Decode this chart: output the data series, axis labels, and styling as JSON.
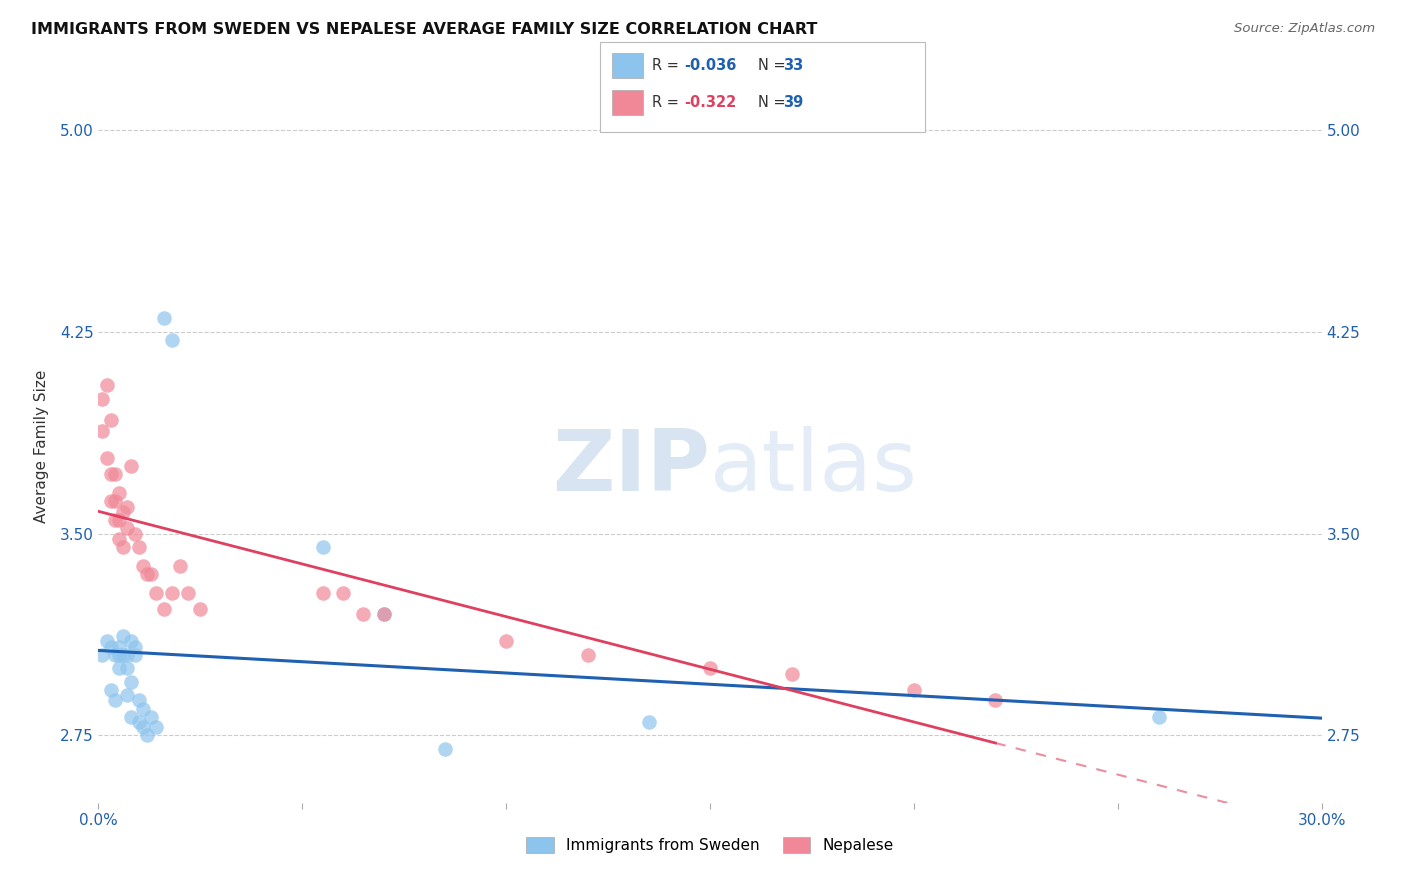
{
  "title": "IMMIGRANTS FROM SWEDEN VS NEPALESE AVERAGE FAMILY SIZE CORRELATION CHART",
  "source": "Source: ZipAtlas.com",
  "ylabel": "Average Family Size",
  "xlim": [
    0.0,
    0.3
  ],
  "ylim": [
    2.5,
    5.15
  ],
  "yticks": [
    2.75,
    3.5,
    4.25,
    5.0
  ],
  "xticks": [
    0.0,
    0.05,
    0.1,
    0.15,
    0.2,
    0.25,
    0.3
  ],
  "background_color": "#ffffff",
  "legend_R1": "-0.036",
  "legend_N1": "33",
  "legend_R2": "-0.322",
  "legend_N2": "39",
  "color_sweden": "#8dc4ed",
  "color_nepal": "#f08898",
  "line_color_sweden": "#2060b0",
  "line_color_nepal": "#e04060",
  "scatter_alpha": 0.7,
  "sweden_x": [
    0.001,
    0.002,
    0.003,
    0.003,
    0.004,
    0.004,
    0.005,
    0.005,
    0.005,
    0.006,
    0.006,
    0.007,
    0.007,
    0.007,
    0.008,
    0.008,
    0.008,
    0.009,
    0.009,
    0.01,
    0.01,
    0.011,
    0.011,
    0.012,
    0.013,
    0.014,
    0.016,
    0.018,
    0.055,
    0.07,
    0.085,
    0.135,
    0.26
  ],
  "sweden_y": [
    3.05,
    3.1,
    3.08,
    2.92,
    3.05,
    2.88,
    3.08,
    3.05,
    3.0,
    3.05,
    3.12,
    3.05,
    3.0,
    2.9,
    3.1,
    2.95,
    2.82,
    3.08,
    3.05,
    2.88,
    2.8,
    2.85,
    2.78,
    2.75,
    2.82,
    2.78,
    4.3,
    4.22,
    3.45,
    3.2,
    2.7,
    2.8,
    2.82
  ],
  "nepal_x": [
    0.001,
    0.001,
    0.002,
    0.002,
    0.003,
    0.003,
    0.003,
    0.004,
    0.004,
    0.004,
    0.005,
    0.005,
    0.005,
    0.006,
    0.006,
    0.007,
    0.007,
    0.008,
    0.009,
    0.01,
    0.011,
    0.012,
    0.013,
    0.014,
    0.016,
    0.018,
    0.02,
    0.022,
    0.025,
    0.055,
    0.06,
    0.065,
    0.07,
    0.1,
    0.12,
    0.15,
    0.17,
    0.2,
    0.22
  ],
  "nepal_y": [
    3.88,
    4.0,
    3.78,
    4.05,
    3.72,
    3.92,
    3.62,
    3.62,
    3.72,
    3.55,
    3.65,
    3.55,
    3.48,
    3.58,
    3.45,
    3.6,
    3.52,
    3.75,
    3.5,
    3.45,
    3.38,
    3.35,
    3.35,
    3.28,
    3.22,
    3.28,
    3.38,
    3.28,
    3.22,
    3.28,
    3.28,
    3.2,
    3.2,
    3.1,
    3.05,
    3.0,
    2.98,
    2.92,
    2.88
  ]
}
